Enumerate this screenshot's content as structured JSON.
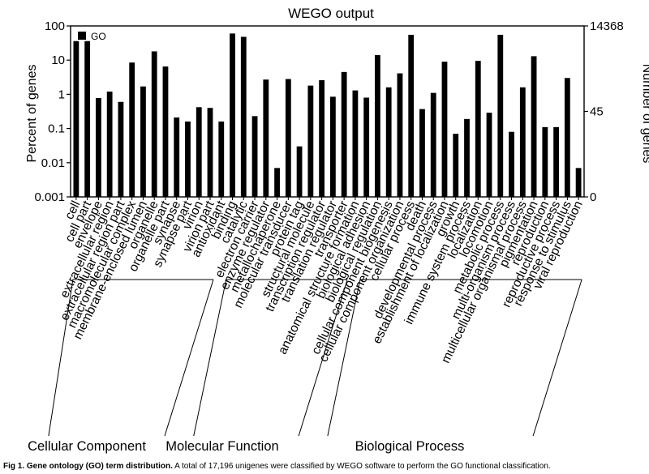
{
  "chart_data": {
    "type": "bar",
    "title": "WEGO output",
    "ylabel_left": "Percent of genes",
    "ylabel_right": "Number of genes",
    "yscale": "log",
    "ylim": [
      0.001,
      100
    ],
    "yticks_left": [
      "0.001",
      "0.01",
      "0.1",
      "1",
      "10",
      "100"
    ],
    "yticks_right": [
      "0",
      "45",
      "14368"
    ],
    "legend": "GO",
    "legend_position": "top-left",
    "categories": [
      "cell",
      "cell part",
      "envelope",
      "extracellular region",
      "extracellular region part",
      "macromolecular complex",
      "membrane-enclosed lumen",
      "organelle",
      "organelle part",
      "synapse",
      "synapse part",
      "virion",
      "virion part",
      "antioxidant",
      "binding",
      "catalytic",
      "electron carrier",
      "enzyme regulator",
      "metallochaperone",
      "molecular transducer",
      "protein tag",
      "structural molecule",
      "transcription regulator",
      "translation regulator",
      "transporter",
      "anatomical structure formation",
      "biological adhesion",
      "biological regulation",
      "cellular component biogenesis",
      "cellular component organization",
      "cellular process",
      "death",
      "developmental process",
      "establishment of localization",
      "growth",
      "immune system process",
      "localization",
      "locomotion",
      "metabolic process",
      "multi-organism process",
      "multicellular organismal process",
      "pigmentation",
      "reproduction",
      "reproductive process",
      "response to stimulus",
      "viral reproduction"
    ],
    "values": [
      36,
      36,
      0.78,
      1.2,
      0.6,
      8.5,
      1.7,
      18,
      6.5,
      0.21,
      0.16,
      0.42,
      0.4,
      0.16,
      60,
      48,
      0.23,
      2.7,
      0.007,
      2.8,
      0.03,
      1.8,
      2.6,
      0.85,
      4.5,
      1.3,
      0.8,
      14,
      1.6,
      4.1,
      55,
      0.37,
      1.1,
      9,
      0.07,
      0.19,
      9.5,
      0.29,
      55,
      0.08,
      1.6,
      13,
      0.11,
      0.11,
      3.0,
      0.007
    ],
    "groups": [
      {
        "label": "Cellular Component",
        "start": 0,
        "end": 12
      },
      {
        "label": "Molecular Function",
        "start": 13,
        "end": 24
      },
      {
        "label": "Biological Process",
        "start": 25,
        "end": 45
      }
    ]
  },
  "caption": {
    "lead": "Fig 1. Gene ontology (GO) term distribution.",
    "text": " A total of 17,196 unigenes were classified by WEGO software to perform the GO functional classification."
  }
}
